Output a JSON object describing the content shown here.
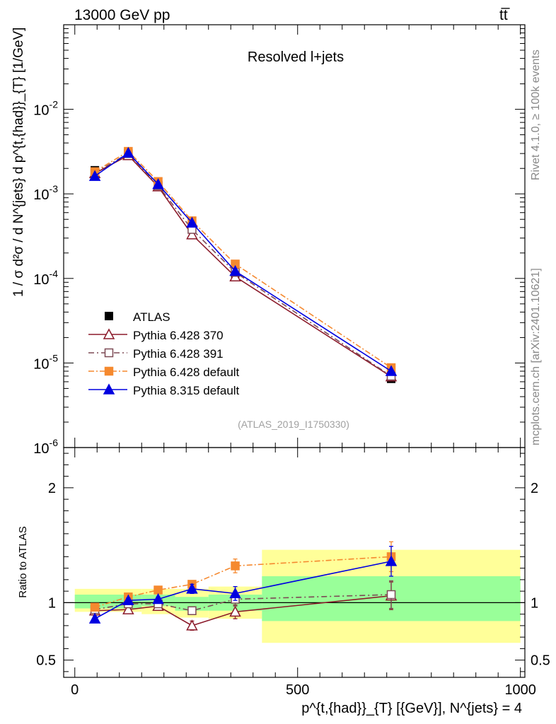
{
  "header": {
    "energy_label": "13000 GeV pp",
    "process_label": "tt̅",
    "plot_title": "Resolved l+jets",
    "analysis_tag": "(ATLAS_2019_I1750330)"
  },
  "side_text": {
    "rivet": "Rivet 4.1.0, ≥ 100k events",
    "mcplots": "mcplots.cern.ch [arXiv:2401.10621]"
  },
  "axis_text": {
    "ylabel_main": "1 / σ d²σ / d N^{jets} d p^{t,{had}}_{T} [1/GeV]",
    "ylabel_ratio": "Ratio to ATLAS",
    "xlabel": "p^{t,{had}}_{T} [{GeV}], N^{jets} = 4"
  },
  "chart_data": {
    "type": "line",
    "x": [
      45,
      120,
      187,
      263,
      360,
      710
    ],
    "xlim": [
      -25,
      1010
    ],
    "main_ylim": [
      1e-06,
      0.1
    ],
    "ratio_ylim": [
      0.35,
      2.35
    ],
    "x_ticks": [
      "0",
      "500",
      "1000"
    ],
    "main_y_ticks": [
      "10^{-6}",
      "10^{-5}",
      "10^{-4}",
      "10^{-3}",
      "10^{-2}"
    ],
    "ratio_y_ticks": [
      "0.5",
      "1",
      "2"
    ],
    "data": {
      "name": "ATLAS",
      "values": [
        0.0019,
        0.00305,
        0.00127,
        0.00041,
        0.000115,
        6.5e-06
      ],
      "bands": [
        {
          "x0": 0,
          "x1": 150,
          "y_lo": 0.95,
          "y_hi": 1.07,
          "y2_lo": 0.92,
          "y2_hi": 1.12
        },
        {
          "x0": 150,
          "x1": 225,
          "y_lo": 0.97,
          "y_hi": 1.07,
          "y2_lo": 0.9,
          "y2_hi": 1.12
        },
        {
          "x0": 225,
          "x1": 300,
          "y_lo": 0.93,
          "y_hi": 1.05,
          "y2_lo": 0.87,
          "y2_hi": 1.12
        },
        {
          "x0": 300,
          "x1": 420,
          "y_lo": 0.93,
          "y_hi": 1.07,
          "y2_lo": 0.86,
          "y2_hi": 1.14
        },
        {
          "x0": 420,
          "x1": 1000,
          "y_lo": 0.84,
          "y_hi": 1.23,
          "y2_lo": 0.65,
          "y2_hi": 1.46
        }
      ]
    },
    "series": [
      {
        "name": "Pythia 6.428 370",
        "color": "#8b1a2a",
        "marker": "triangle-open",
        "dash": "",
        "values": [
          0.00175,
          0.00285,
          0.00122,
          0.00033,
          0.000105,
          6.9e-06
        ],
        "ratio": [
          0.93,
          0.94,
          0.97,
          0.8,
          0.92,
          1.06
        ],
        "ratio_err": [
          0.02,
          0.02,
          0.03,
          0.04,
          0.06,
          0.12
        ]
      },
      {
        "name": "Pythia 6.428 391",
        "color": "#7d4a55",
        "marker": "square-open",
        "dash": "8,4,2,4",
        "values": [
          0.00178,
          0.003,
          0.00125,
          0.00038,
          0.000118,
          7e-06
        ],
        "ratio": [
          0.94,
          0.99,
          0.99,
          0.93,
          1.03,
          1.07
        ],
        "ratio_err": [
          0.02,
          0.02,
          0.02,
          0.03,
          0.06,
          0.12
        ]
      },
      {
        "name": "Pythia 6.428 default",
        "color": "#f5892f",
        "marker": "square",
        "dash": "8,3,2,3",
        "values": [
          0.00183,
          0.00318,
          0.0014,
          0.00048,
          0.000148,
          8.8e-06
        ],
        "ratio": [
          0.96,
          1.05,
          1.11,
          1.16,
          1.32,
          1.4
        ],
        "ratio_err": [
          0.02,
          0.02,
          0.03,
          0.03,
          0.06,
          0.13
        ]
      },
      {
        "name": "Pythia 8.315 default",
        "color": "#0000e0",
        "marker": "triangle",
        "dash": "",
        "values": [
          0.00162,
          0.00305,
          0.0013,
          0.000455,
          0.000122,
          8e-06
        ],
        "ratio": [
          0.86,
          1.02,
          1.03,
          1.12,
          1.08,
          1.36
        ],
        "ratio_err": [
          0.02,
          0.02,
          0.02,
          0.04,
          0.06,
          0.13
        ]
      }
    ]
  }
}
